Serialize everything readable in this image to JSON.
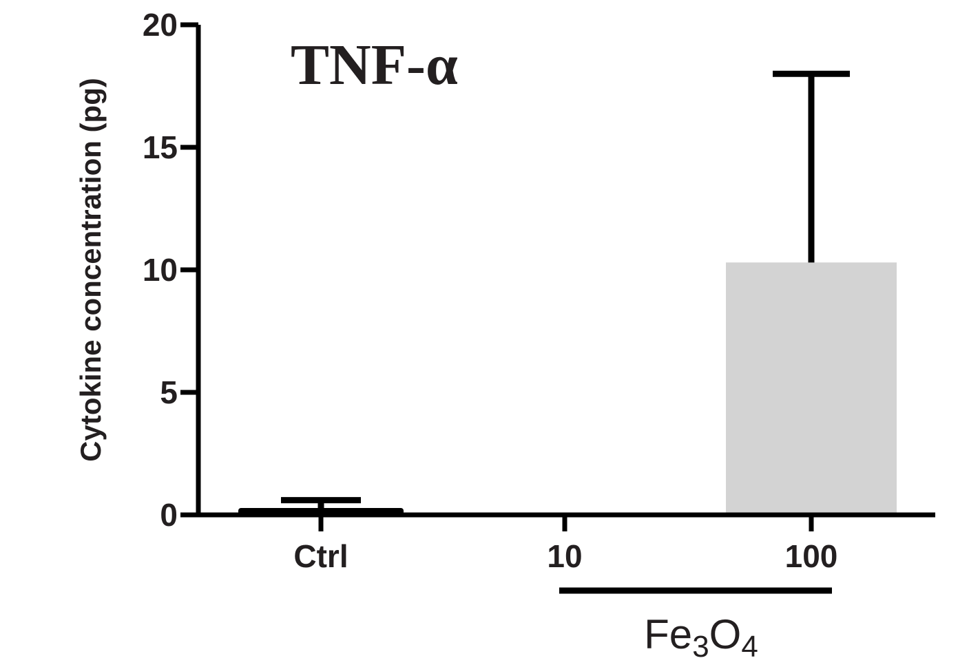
{
  "chart_data": {
    "type": "bar",
    "title": "TNF-α",
    "ylabel": "Cytokine concentration (pg)",
    "xlabel": "",
    "ylim": [
      0,
      20
    ],
    "yticks": [
      0,
      5,
      10,
      15,
      20
    ],
    "ytick_labels": [
      "0",
      "5",
      "10",
      "15",
      "20"
    ],
    "categories": [
      "Ctrl",
      "10",
      "100"
    ],
    "values": [
      0.1,
      0,
      10.3
    ],
    "error_upper": [
      0.6,
      0,
      18.0
    ],
    "group_label": {
      "base": "Fe",
      "sub1": "3",
      "mid": "O",
      "sub2": "4",
      "spans_categories": [
        "10",
        "100"
      ]
    },
    "bar_color": "#d3d3d3",
    "grid": false
  }
}
